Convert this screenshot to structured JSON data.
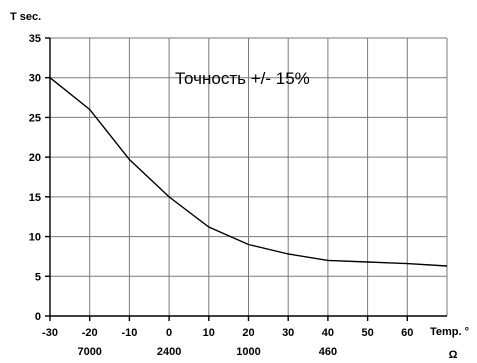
{
  "chart_data": {
    "type": "line",
    "ylabel": "T sec.",
    "xlabel": "Temp. °",
    "x2label": "Ω",
    "annotation": "Точность +/- 15%",
    "xlim": [
      -30,
      70
    ],
    "ylim": [
      0,
      35
    ],
    "x_ticks": [
      "-30",
      "-20",
      "-10",
      "0",
      "10",
      "20",
      "30",
      "40",
      "50",
      "60"
    ],
    "y_ticks": [
      "0",
      "5",
      "10",
      "15",
      "20",
      "25",
      "30",
      "35"
    ],
    "resistance_ticks": [
      {
        "x": -20,
        "label": "7000"
      },
      {
        "x": 0,
        "label": "2400"
      },
      {
        "x": 20,
        "label": "1000"
      },
      {
        "x": 40,
        "label": "460"
      }
    ],
    "grid": true,
    "series": [
      {
        "x": [
          -30,
          -20,
          -10,
          0,
          10,
          20,
          30,
          40,
          50,
          60,
          70
        ],
        "values": [
          30,
          26,
          19.7,
          15,
          11.2,
          9,
          7.8,
          7,
          6.8,
          6.6,
          6.3
        ]
      }
    ]
  }
}
